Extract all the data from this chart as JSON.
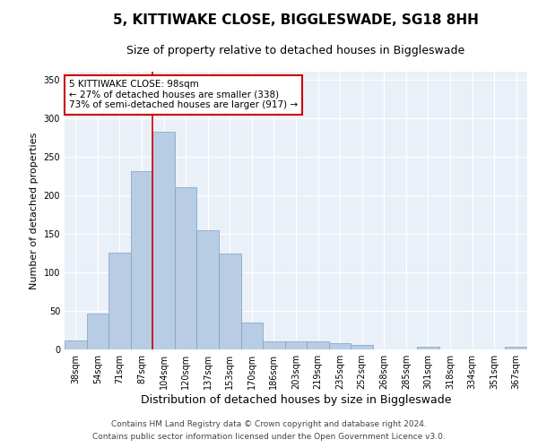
{
  "title": "5, KITTIWAKE CLOSE, BIGGLESWADE, SG18 8HH",
  "subtitle": "Size of property relative to detached houses in Biggleswade",
  "xlabel": "Distribution of detached houses by size in Biggleswade",
  "ylabel": "Number of detached properties",
  "categories": [
    "38sqm",
    "54sqm",
    "71sqm",
    "87sqm",
    "104sqm",
    "120sqm",
    "137sqm",
    "153sqm",
    "170sqm",
    "186sqm",
    "203sqm",
    "219sqm",
    "235sqm",
    "252sqm",
    "268sqm",
    "285sqm",
    "301sqm",
    "318sqm",
    "334sqm",
    "351sqm",
    "367sqm"
  ],
  "values": [
    12,
    46,
    126,
    231,
    282,
    210,
    155,
    124,
    35,
    11,
    11,
    10,
    8,
    6,
    0,
    0,
    3,
    0,
    0,
    0,
    3
  ],
  "bar_color": "#b8cce4",
  "bar_edge_color": "#7aa0c4",
  "annotation_text": "5 KITTIWAKE CLOSE: 98sqm\n← 27% of detached houses are smaller (338)\n73% of semi-detached houses are larger (917) →",
  "annotation_box_color": "#ffffff",
  "annotation_box_edge_color": "#cc0000",
  "annotation_text_color": "#000000",
  "vline_color": "#cc0000",
  "vline_x": 3.5,
  "footnote1": "Contains HM Land Registry data © Crown copyright and database right 2024.",
  "footnote2": "Contains public sector information licensed under the Open Government Licence v3.0.",
  "ylim": [
    0,
    360
  ],
  "yticks": [
    0,
    50,
    100,
    150,
    200,
    250,
    300,
    350
  ],
  "bg_color": "#eaf0f8",
  "title_fontsize": 11,
  "subtitle_fontsize": 9,
  "xlabel_fontsize": 9,
  "ylabel_fontsize": 8,
  "tick_fontsize": 7,
  "footnote_fontsize": 6.5
}
